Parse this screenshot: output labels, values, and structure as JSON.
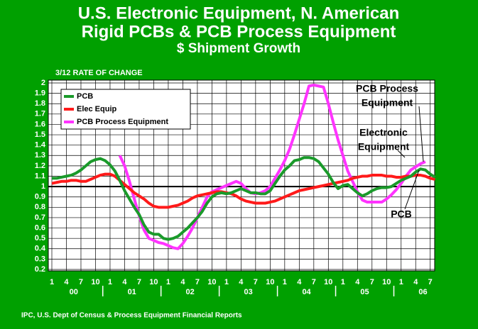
{
  "chart_data": {
    "type": "line",
    "title_lines": [
      "U.S. Electronic Equipment, N. American",
      "Rigid PCBs & PCB Process Equipment"
    ],
    "subtitle": "$ Shipment Growth",
    "y_label": "3/12 RATE OF CHANGE",
    "source": "IPC, U.S. Dept of Census & Process Equipment Financial Reports",
    "categories": [
      "1",
      null,
      null,
      "4",
      null,
      null,
      "7",
      null,
      null,
      "10",
      null,
      null,
      "1",
      null,
      null,
      "4",
      null,
      null,
      "7",
      null,
      null,
      "10",
      null,
      null,
      "1",
      null,
      null,
      "4",
      null,
      null,
      "7",
      null,
      null,
      "10",
      null,
      null,
      "1",
      null,
      null,
      "4",
      null,
      null,
      "7",
      null,
      null,
      "10",
      null,
      null,
      "1",
      null,
      null,
      "4",
      null,
      null,
      "7",
      null,
      null,
      "10",
      null,
      null,
      "1",
      null,
      null,
      "4",
      null,
      null,
      "7",
      null,
      null,
      "10",
      null,
      null,
      "1",
      null,
      null,
      "4",
      null,
      null,
      "7",
      null
    ],
    "year_labels": [
      "00",
      "01",
      "02",
      "03",
      "04",
      "05",
      "06"
    ],
    "series": [
      {
        "name": "PCB",
        "color": "#1a9a2a",
        "values": [
          1.08,
          1.08,
          1.09,
          1.1,
          1.11,
          1.13,
          1.16,
          1.2,
          1.24,
          1.26,
          1.27,
          1.25,
          1.21,
          1.15,
          1.06,
          0.96,
          0.88,
          0.8,
          0.73,
          0.63,
          0.56,
          0.54,
          0.54,
          0.5,
          0.49,
          0.5,
          0.52,
          0.56,
          0.6,
          0.65,
          0.7,
          0.76,
          0.84,
          0.9,
          0.93,
          0.94,
          0.93,
          0.94,
          0.96,
          0.98,
          0.96,
          0.94,
          0.94,
          0.93,
          0.93,
          0.96,
          1.03,
          1.1,
          1.16,
          1.2,
          1.25,
          1.26,
          1.28,
          1.28,
          1.27,
          1.24,
          1.18,
          1.12,
          1.04,
          0.98,
          1.01,
          1.02,
          0.98,
          0.94,
          0.91,
          0.93,
          0.96,
          0.98,
          0.99,
          0.99,
          1.0,
          1.03,
          1.06,
          1.08,
          1.1,
          1.14,
          1.17,
          1.16,
          1.12,
          1.09
        ]
      },
      {
        "name": "Elec Equip",
        "color": "#ff1a1a",
        "values": [
          1.03,
          1.04,
          1.05,
          1.05,
          1.06,
          1.06,
          1.05,
          1.05,
          1.07,
          1.09,
          1.11,
          1.12,
          1.12,
          1.1,
          1.06,
          1.02,
          0.98,
          0.94,
          0.91,
          0.88,
          0.84,
          0.81,
          0.8,
          0.8,
          0.8,
          0.81,
          0.82,
          0.84,
          0.86,
          0.89,
          0.91,
          0.92,
          0.93,
          0.94,
          0.95,
          0.95,
          0.94,
          0.93,
          0.91,
          0.88,
          0.86,
          0.85,
          0.84,
          0.84,
          0.84,
          0.85,
          0.86,
          0.88,
          0.9,
          0.92,
          0.94,
          0.96,
          0.97,
          0.98,
          0.99,
          1.0,
          1.01,
          1.02,
          1.03,
          1.04,
          1.05,
          1.06,
          1.08,
          1.09,
          1.1,
          1.1,
          1.11,
          1.11,
          1.11,
          1.1,
          1.1,
          1.09,
          1.09,
          1.1,
          1.1,
          1.11,
          1.11,
          1.1,
          1.08,
          1.07
        ]
      },
      {
        "name": "PCB Process Equipment",
        "color": "#ff33ff",
        "values": [
          null,
          null,
          null,
          null,
          null,
          null,
          null,
          null,
          null,
          null,
          null,
          null,
          null,
          null,
          1.3,
          1.2,
          1.05,
          0.88,
          0.72,
          0.58,
          0.5,
          0.48,
          0.46,
          0.45,
          0.43,
          0.41,
          0.4,
          0.45,
          0.52,
          0.6,
          0.7,
          0.8,
          0.9,
          0.95,
          0.97,
          0.99,
          1.01,
          1.03,
          1.05,
          1.03,
          0.98,
          0.94,
          0.93,
          0.94,
          0.96,
          1.0,
          1.08,
          1.16,
          1.25,
          1.36,
          1.5,
          1.65,
          1.8,
          1.97,
          1.98,
          1.97,
          1.96,
          1.8,
          1.62,
          1.45,
          1.3,
          1.15,
          1.05,
          0.95,
          0.87,
          0.85,
          0.85,
          0.85,
          0.85,
          0.88,
          0.92,
          0.97,
          1.03,
          1.1,
          1.16,
          1.19,
          1.22,
          1.24,
          null,
          null
        ]
      }
    ],
    "ylim": [
      0.2,
      2
    ],
    "yticks": [
      0.2,
      0.3,
      0.4,
      0.5,
      0.6,
      0.7,
      0.8,
      0.9,
      1,
      1.1,
      1.2,
      1.3,
      1.4,
      1.5,
      1.6,
      1.7,
      1.8,
      1.9,
      2
    ],
    "reference_line": 1,
    "grid": true,
    "annotations": [
      {
        "lines": [
          "PCB Process",
          "Equipment"
        ]
      },
      {
        "lines": [
          "Electronic",
          "Equipment"
        ]
      },
      {
        "lines": [
          "PCB"
        ]
      }
    ]
  }
}
